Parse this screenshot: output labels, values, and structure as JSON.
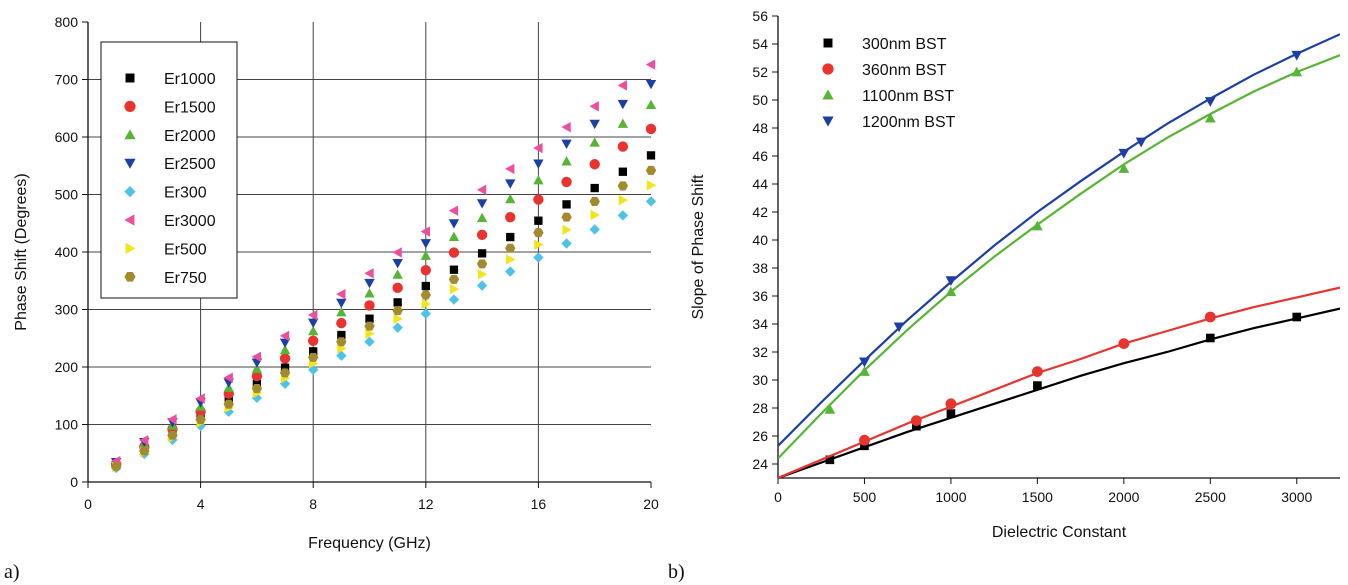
{
  "chart_data": [
    {
      "type": "scatter",
      "panel_label": "a)",
      "xlabel": "Frequency (GHz)",
      "ylabel": "Phase Shift (Degrees)",
      "xlim": [
        0,
        20
      ],
      "ylim": [
        0,
        800
      ],
      "xticks": [
        0,
        4,
        8,
        12,
        16,
        20
      ],
      "xtick_labels": [
        "0",
        "4",
        "8",
        "12",
        "16",
        "20"
      ],
      "yticks": [
        0,
        100,
        200,
        300,
        400,
        500,
        600,
        700,
        800
      ],
      "ytick_labels": [
        "0",
        "100",
        "200",
        "300",
        "400",
        "500",
        "600",
        "700",
        "800"
      ],
      "grid": true,
      "legend_position": "top-left",
      "x": [
        1,
        2,
        3,
        4,
        5,
        6,
        7,
        8,
        9,
        10,
        11,
        12,
        13,
        14,
        15,
        16,
        17,
        18,
        19,
        20
      ],
      "series": [
        {
          "name": "Er1000",
          "color": "#000000",
          "marker": "square",
          "values": [
            28.4,
            56.8,
            85.2,
            113.6,
            142,
            170.4,
            198.8,
            227.2,
            255.6,
            284,
            312.4,
            340.8,
            369.2,
            397.6,
            426,
            454.4,
            482.8,
            511.2,
            539.6,
            568
          ]
        },
        {
          "name": "Er1500",
          "color": "#e8332f",
          "marker": "circle",
          "values": [
            30.7,
            61.4,
            92.1,
            122.8,
            153.5,
            184.2,
            214.9,
            245.6,
            276.3,
            307,
            337.7,
            368.4,
            399.1,
            429.8,
            460.5,
            491.2,
            521.9,
            552.6,
            583.3,
            614
          ]
        },
        {
          "name": "Er2000",
          "color": "#57b435",
          "marker": "triangle-up",
          "values": [
            32.8,
            65.6,
            98.4,
            131.2,
            164,
            196.8,
            229.6,
            262.4,
            295.2,
            328,
            360.8,
            393.6,
            426.4,
            459.2,
            492,
            524.8,
            557.6,
            590.4,
            623.2,
            656
          ]
        },
        {
          "name": "Er2500",
          "color": "#1c3fa6",
          "marker": "triangle-down",
          "values": [
            34.6,
            69.2,
            103.8,
            138.4,
            173,
            207.6,
            242.2,
            276.8,
            311.4,
            346,
            380.6,
            415.2,
            449.8,
            484.4,
            519,
            553.6,
            588.2,
            622.8,
            657.4,
            692
          ]
        },
        {
          "name": "Er300",
          "color": "#4fc3e6",
          "marker": "diamond",
          "values": [
            24.4,
            48.8,
            73.2,
            97.6,
            122,
            146.4,
            170.8,
            195.2,
            219.6,
            244,
            268.4,
            292.8,
            317.2,
            341.6,
            366,
            390.4,
            414.8,
            439.2,
            463.6,
            488
          ]
        },
        {
          "name": "Er3000",
          "color": "#ee4f9c",
          "marker": "triangle-left",
          "values": [
            36.3,
            72.6,
            108.9,
            145.2,
            181.5,
            217.8,
            254.1,
            290.4,
            326.7,
            363,
            399.3,
            435.6,
            471.9,
            508.2,
            544.5,
            580.8,
            617.1,
            653.4,
            689.7,
            726
          ]
        },
        {
          "name": "Er500",
          "color": "#f2e41d",
          "marker": "triangle-right",
          "values": [
            25.8,
            51.6,
            77.4,
            103.2,
            129,
            154.8,
            180.6,
            206.4,
            232.2,
            258,
            283.8,
            309.6,
            335.4,
            361.2,
            387,
            412.8,
            438.6,
            464.4,
            490.2,
            516
          ]
        },
        {
          "name": "Er750",
          "color": "#a38a2e",
          "marker": "hexagon",
          "values": [
            27.1,
            54.2,
            81.3,
            108.4,
            135.5,
            162.6,
            189.7,
            216.8,
            243.9,
            271,
            298.1,
            325.2,
            352.3,
            379.4,
            406.5,
            433.6,
            460.7,
            487.8,
            514.9,
            542
          ]
        }
      ]
    },
    {
      "type": "line",
      "panel_label": "b)",
      "xlabel": "Dielectric Constant",
      "ylabel": "Slope of Phase Shift",
      "xlim": [
        0,
        3250
      ],
      "ylim": [
        23,
        56
      ],
      "xticks": [
        0,
        500,
        1000,
        1500,
        2000,
        2500,
        3000
      ],
      "xtick_labels": [
        "0",
        "500",
        "1000",
        "1500",
        "2000",
        "2500",
        "3000"
      ],
      "yticks": [
        24,
        26,
        28,
        30,
        32,
        34,
        36,
        38,
        40,
        42,
        44,
        46,
        48,
        50,
        52,
        54,
        56
      ],
      "ytick_labels": [
        "24",
        "26",
        "28",
        "30",
        "32",
        "34",
        "36",
        "38",
        "40",
        "42",
        "44",
        "46",
        "48",
        "50",
        "52",
        "54",
        "56"
      ],
      "grid": false,
      "legend_position": "top-left",
      "series": [
        {
          "name": "300nm BST",
          "color": "#000000",
          "marker": "square",
          "points": [
            [
              300,
              24.3
            ],
            [
              500,
              25.3
            ],
            [
              800,
              26.7
            ],
            [
              1000,
              27.6
            ],
            [
              1500,
              29.6
            ],
            [
              2500,
              33.0
            ],
            [
              3000,
              34.5
            ]
          ],
          "curve": [
            [
              0,
              23.0
            ],
            [
              250,
              24.1
            ],
            [
              500,
              25.2
            ],
            [
              750,
              26.3
            ],
            [
              1000,
              27.3
            ],
            [
              1250,
              28.3
            ],
            [
              1500,
              29.3
            ],
            [
              1750,
              30.3
            ],
            [
              2000,
              31.2
            ],
            [
              2250,
              32.0
            ],
            [
              2500,
              32.9
            ],
            [
              2750,
              33.7
            ],
            [
              3000,
              34.4
            ],
            [
              3250,
              35.1
            ]
          ]
        },
        {
          "name": "360nm BST",
          "color": "#e8332f",
          "marker": "circle",
          "points": [
            [
              500,
              25.7
            ],
            [
              800,
              27.1
            ],
            [
              1000,
              28.3
            ],
            [
              1500,
              30.6
            ],
            [
              2000,
              32.6
            ],
            [
              2500,
              34.5
            ]
          ],
          "curve": [
            [
              0,
              23.0
            ],
            [
              250,
              24.3
            ],
            [
              500,
              25.6
            ],
            [
              750,
              26.9
            ],
            [
              1000,
              28.1
            ],
            [
              1250,
              29.3
            ],
            [
              1500,
              30.5
            ],
            [
              1750,
              31.5
            ],
            [
              2000,
              32.6
            ],
            [
              2250,
              33.5
            ],
            [
              2500,
              34.4
            ],
            [
              2750,
              35.2
            ],
            [
              3000,
              35.9
            ],
            [
              3250,
              36.6
            ]
          ]
        },
        {
          "name": "1100nm BST",
          "color": "#57b435",
          "marker": "triangle-up",
          "points": [
            [
              300,
              27.9
            ],
            [
              500,
              30.6
            ],
            [
              1000,
              36.3
            ],
            [
              1500,
              41.0
            ],
            [
              2000,
              45.1
            ],
            [
              2500,
              48.7
            ],
            [
              3000,
              52.0
            ]
          ],
          "curve": [
            [
              0,
              24.4
            ],
            [
              250,
              27.6
            ],
            [
              500,
              30.7
            ],
            [
              750,
              33.6
            ],
            [
              1000,
              36.3
            ],
            [
              1250,
              38.8
            ],
            [
              1500,
              41.1
            ],
            [
              1750,
              43.3
            ],
            [
              2000,
              45.4
            ],
            [
              2250,
              47.3
            ],
            [
              2500,
              49.0
            ],
            [
              2750,
              50.6
            ],
            [
              3000,
              52.0
            ],
            [
              3250,
              53.2
            ]
          ]
        },
        {
          "name": "1200nm BST",
          "color": "#1c3fa6",
          "marker": "triangle-down",
          "points": [
            [
              500,
              31.3
            ],
            [
              700,
              33.8
            ],
            [
              1000,
              37.1
            ],
            [
              2000,
              46.2
            ],
            [
              2100,
              47.0
            ],
            [
              2500,
              49.9
            ],
            [
              3000,
              53.2
            ]
          ],
          "curve": [
            [
              0,
              25.3
            ],
            [
              250,
              28.4
            ],
            [
              500,
              31.4
            ],
            [
              750,
              34.3
            ],
            [
              1000,
              37.0
            ],
            [
              1250,
              39.6
            ],
            [
              1500,
              42.0
            ],
            [
              1750,
              44.2
            ],
            [
              2000,
              46.3
            ],
            [
              2250,
              48.3
            ],
            [
              2500,
              50.1
            ],
            [
              2750,
              51.8
            ],
            [
              3000,
              53.3
            ],
            [
              3250,
              54.7
            ]
          ]
        }
      ]
    }
  ]
}
